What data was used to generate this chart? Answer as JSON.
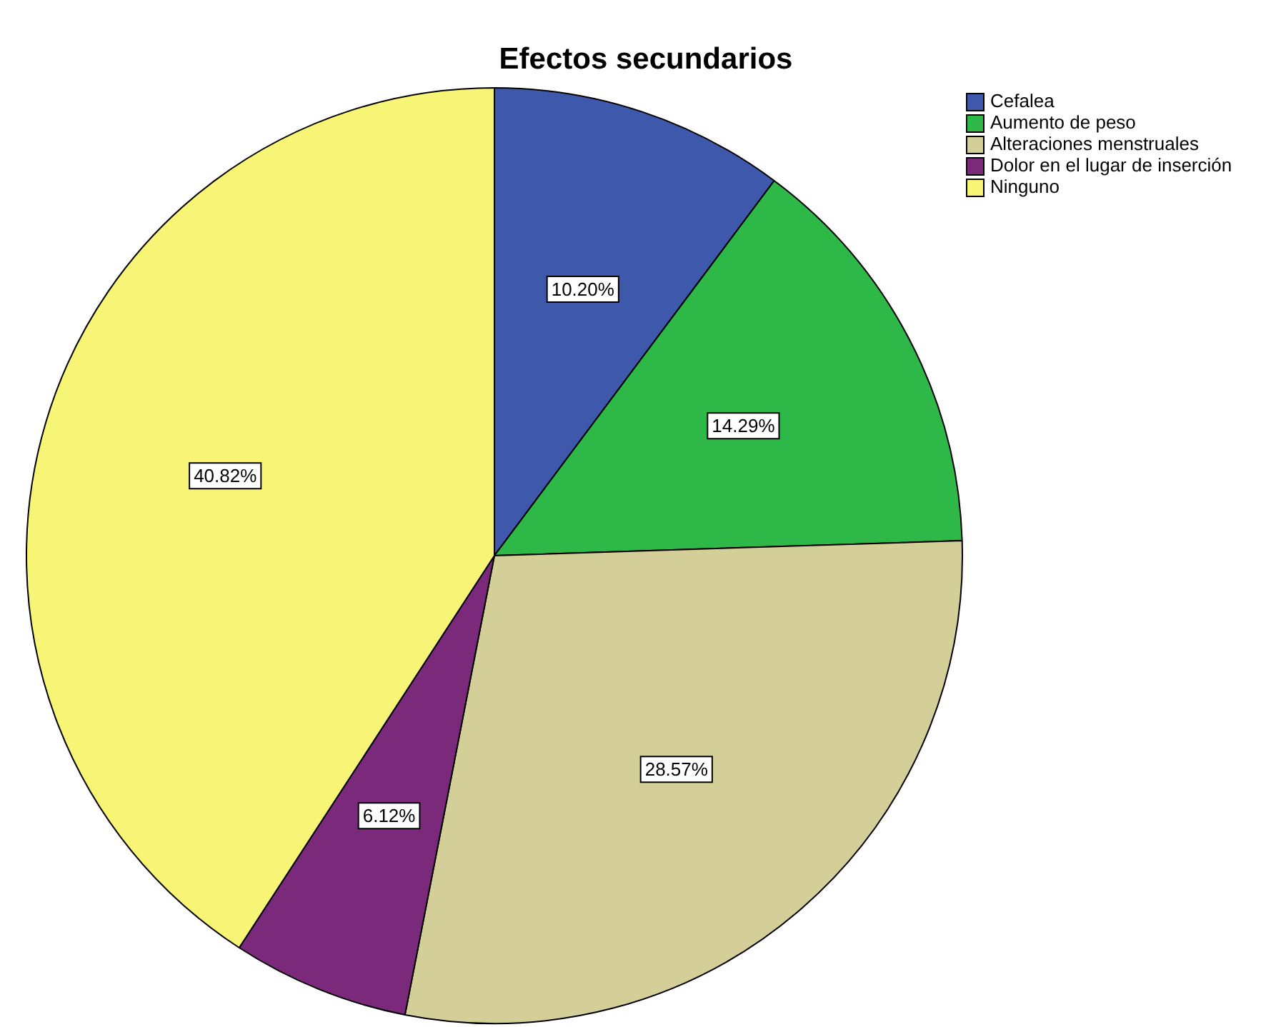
{
  "chart_data": {
    "type": "pie",
    "title": "Efectos secundarios",
    "categories": [
      "Cefalea",
      "Aumento de peso",
      "Alteraciones menstruales",
      "Dolor en el lugar de inserción",
      "Ninguno"
    ],
    "values": [
      10.2,
      14.29,
      28.57,
      6.12,
      40.82
    ],
    "value_labels": [
      "10.20%",
      "14.29%",
      "28.57%",
      "6.12%",
      "40.82%"
    ],
    "colors": [
      "#3e58ac",
      "#2eb848",
      "#d4cf98",
      "#7b2a7b",
      "#f8f476"
    ],
    "legend": "top right"
  }
}
